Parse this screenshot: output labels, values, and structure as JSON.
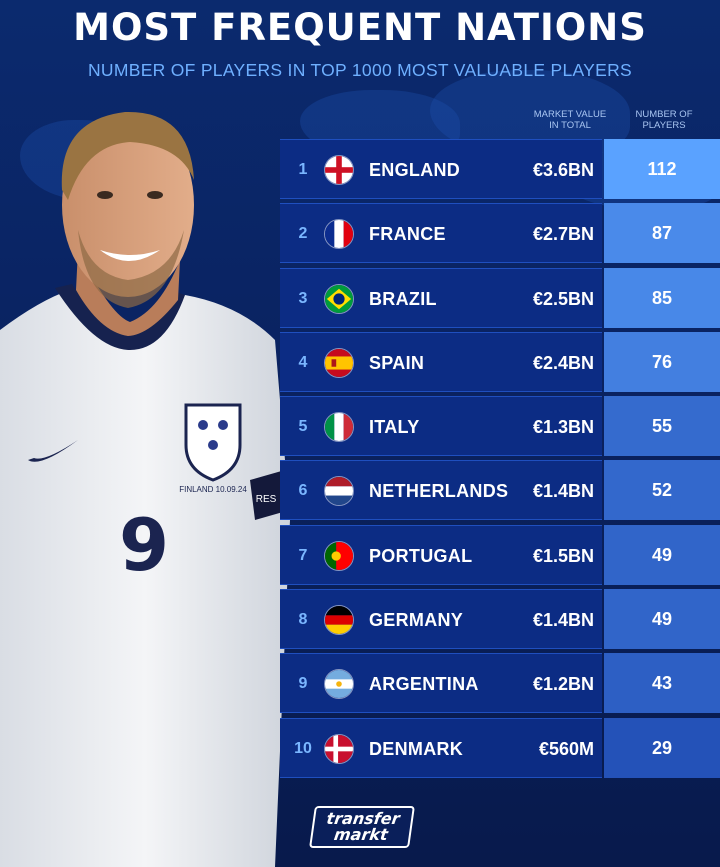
{
  "colors": {
    "background": "#0a2260",
    "row": "#0c2c84",
    "accent": "#6fb0ff",
    "count_light": "#5aa2ff",
    "count_dark": "#2452b8"
  },
  "player": {
    "shirt_number": "9",
    "shirt_text": "FINLAND 10.09.24",
    "sleeve_text": "RES"
  },
  "chart_data": {
    "type": "table",
    "title": "MOST FREQUENT NATIONS",
    "subtitle": "NUMBER OF PLAYERS IN TOP 1000 MOST VALUABLE PLAYERS",
    "columns": {
      "market_value": "MARKET VALUE IN TOTAL",
      "players": "NUMBER OF PLAYERS"
    },
    "rows": [
      {
        "rank": "1",
        "nation": "ENGLAND",
        "flag": "england-flag-icon",
        "market_value": "€3.6BN",
        "players": 112
      },
      {
        "rank": "2",
        "nation": "FRANCE",
        "flag": "france-flag-icon",
        "market_value": "€2.7BN",
        "players": 87
      },
      {
        "rank": "3",
        "nation": "BRAZIL",
        "flag": "brazil-flag-icon",
        "market_value": "€2.5BN",
        "players": 85
      },
      {
        "rank": "4",
        "nation": "SPAIN",
        "flag": "spain-flag-icon",
        "market_value": "€2.4BN",
        "players": 76
      },
      {
        "rank": "5",
        "nation": "ITALY",
        "flag": "italy-flag-icon",
        "market_value": "€1.3BN",
        "players": 55
      },
      {
        "rank": "6",
        "nation": "NETHERLANDS",
        "flag": "netherlands-flag-icon",
        "market_value": "€1.4BN",
        "players": 52
      },
      {
        "rank": "7",
        "nation": "PORTUGAL",
        "flag": "portugal-flag-icon",
        "market_value": "€1.5BN",
        "players": 49
      },
      {
        "rank": "8",
        "nation": "GERMANY",
        "flag": "germany-flag-icon",
        "market_value": "€1.4BN",
        "players": 49
      },
      {
        "rank": "9",
        "nation": "ARGENTINA",
        "flag": "argentina-flag-icon",
        "market_value": "€1.2BN",
        "players": 43
      },
      {
        "rank": "10",
        "nation": "DENMARK",
        "flag": "denmark-flag-icon",
        "market_value": "€560M",
        "players": 29
      }
    ]
  },
  "logo": {
    "line1": "transfer",
    "line2": "markt"
  }
}
